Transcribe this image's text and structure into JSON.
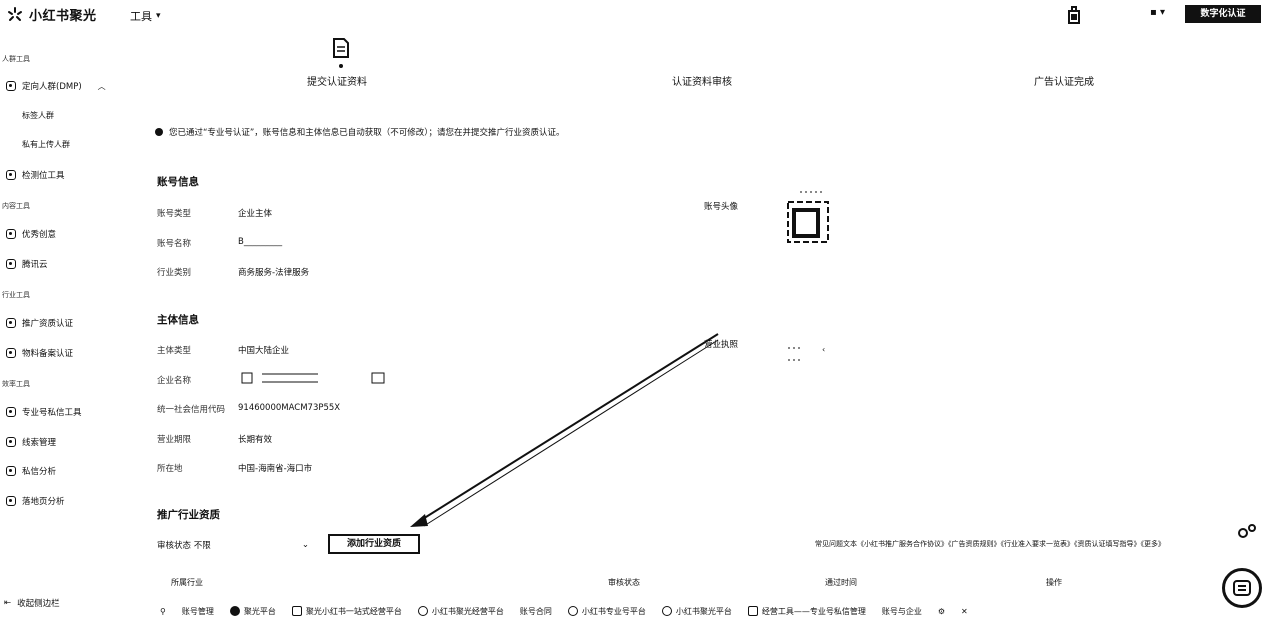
{
  "header": {
    "app_name": "小红书聚光",
    "tools_menu": "工具",
    "right_button": "数字化认证"
  },
  "sidebar": {
    "groups": [
      "人群工具",
      "内容工具",
      "行业工具",
      "效率工具"
    ],
    "items": [
      {
        "label": "定向人群(DMP)"
      },
      {
        "label": "标签人群"
      },
      {
        "label": "私有上传人群"
      },
      {
        "label": "检测位工具"
      },
      {
        "label": "优秀创意"
      },
      {
        "label": "腾讯云"
      },
      {
        "label": "推广资质认证"
      },
      {
        "label": "物料备案认证"
      },
      {
        "label": "专业号私信工具"
      },
      {
        "label": "线索管理"
      },
      {
        "label": "私信分析"
      },
      {
        "label": "落地页分析"
      }
    ],
    "bottom": "收起侧边栏"
  },
  "steps": [
    "提交认证资料",
    "认证资料审核",
    "广告认证完成"
  ],
  "notice": "您已通过“专业号认证”，账号信息和主体信息已自动获取（不可修改）；请您在并提交推广行业资质认证。",
  "account": {
    "title": "账号信息",
    "rows": [
      {
        "label": "账号类型",
        "value": "企业主体"
      },
      {
        "label": "账号名称",
        "value": "B_________"
      },
      {
        "label": "行业类别",
        "value": "商务服务-法律服务"
      }
    ],
    "avatar_label": "账号头像"
  },
  "entity": {
    "title": "主体信息",
    "rows": [
      {
        "label": "主体类型",
        "value": "中国大陆企业"
      },
      {
        "label": "企业名称",
        "value": ""
      },
      {
        "label": "统一社会信用代码",
        "value": "91460000MACM73P55X"
      },
      {
        "label": "营业期限",
        "value": "长期有效"
      },
      {
        "label": "所在地",
        "value": "中国-海南省-海口市"
      }
    ],
    "license_label": "营业执照"
  },
  "qualification": {
    "title": "推广行业资质",
    "select_value": "审核状态 不限",
    "add_button": "添加行业资质",
    "links": "常见问题文本《小红书推广服务合作协议》《广告资质规则》《行业准入要求一览表》《资质认证填写指导》《更多》",
    "columns": [
      "所属行业",
      "审核状态",
      "通过时间",
      "操作"
    ]
  },
  "bookmarks": [
    "账号管理",
    "聚光平台",
    "聚光小红书一站式经营平台",
    "小红书聚光经营平台",
    "账号合同",
    "小红书专业号平台",
    "小红书聚光平台",
    "经营工具——专业号私信管理",
    "账号与企业"
  ]
}
